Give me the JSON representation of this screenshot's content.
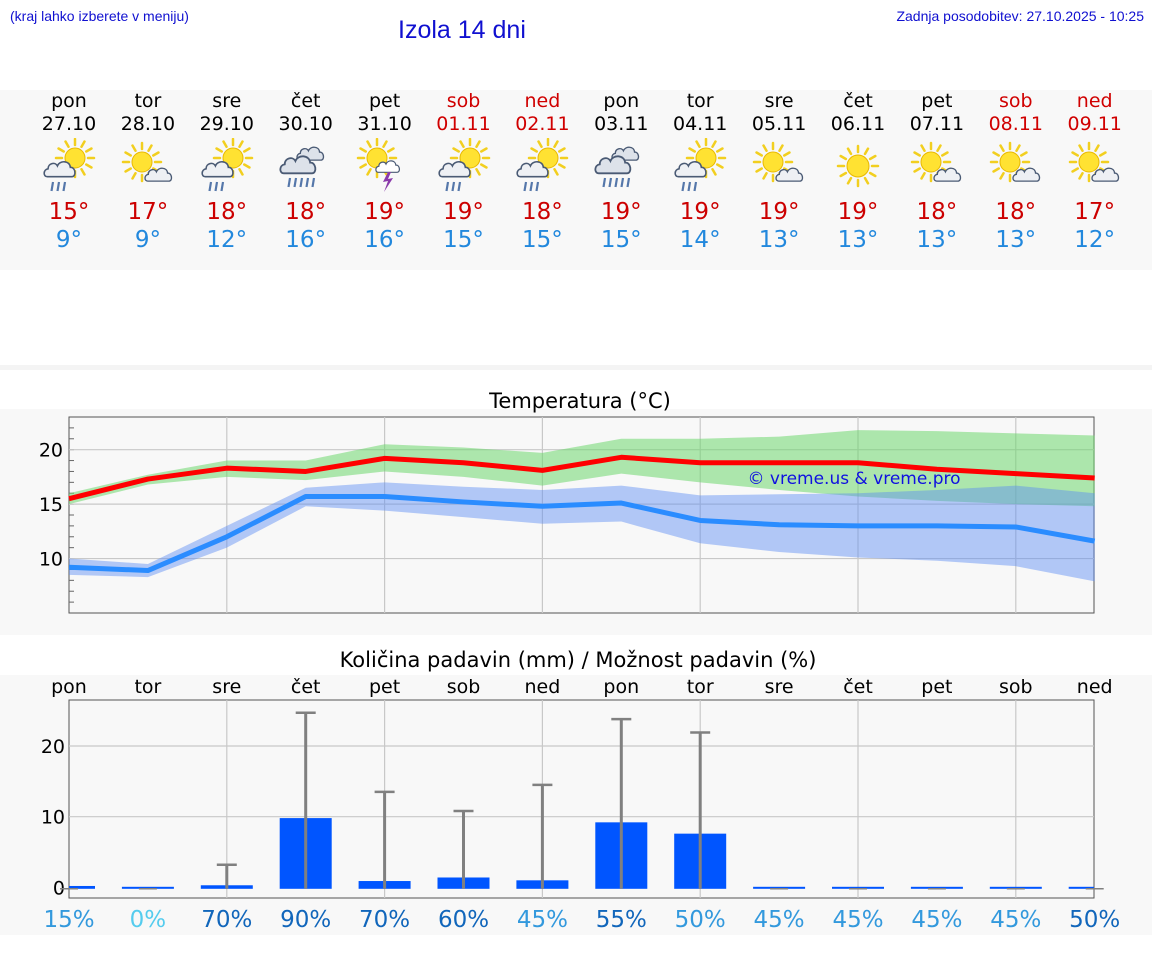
{
  "header": {
    "menu_hint": "(kraj lahko izberete v meniju)",
    "title": "Izola 14 dni",
    "last_update": "Zadnja posodobitev: 27.10.2025 - 10:25"
  },
  "days": [
    {
      "name": "pon",
      "date": "27.10",
      "icon": "sun-cloud-rain-icon",
      "tmax": "15°",
      "tmin": "9°",
      "weekend": false
    },
    {
      "name": "tor",
      "date": "28.10",
      "icon": "sun-cloud-icon",
      "tmax": "17°",
      "tmin": "9°",
      "weekend": false
    },
    {
      "name": "sre",
      "date": "29.10",
      "icon": "sun-cloud-rain-icon",
      "tmax": "18°",
      "tmin": "12°",
      "weekend": false
    },
    {
      "name": "čet",
      "date": "30.10",
      "icon": "cloud-rain-icon",
      "tmax": "18°",
      "tmin": "16°",
      "weekend": false
    },
    {
      "name": "pet",
      "date": "31.10",
      "icon": "sun-thunder-icon",
      "tmax": "19°",
      "tmin": "16°",
      "weekend": false
    },
    {
      "name": "sob",
      "date": "01.11",
      "icon": "sun-cloud-rain-icon",
      "tmax": "19°",
      "tmin": "15°",
      "weekend": true
    },
    {
      "name": "ned",
      "date": "02.11",
      "icon": "sun-cloud-rain-icon",
      "tmax": "18°",
      "tmin": "15°",
      "weekend": true
    },
    {
      "name": "pon",
      "date": "03.11",
      "icon": "cloud-rain-icon",
      "tmax": "19°",
      "tmin": "15°",
      "weekend": false
    },
    {
      "name": "tor",
      "date": "04.11",
      "icon": "sun-cloud-rain-icon",
      "tmax": "19°",
      "tmin": "14°",
      "weekend": false
    },
    {
      "name": "sre",
      "date": "05.11",
      "icon": "sun-cloud-icon",
      "tmax": "19°",
      "tmin": "13°",
      "weekend": false
    },
    {
      "name": "čet",
      "date": "06.11",
      "icon": "sun-icon",
      "tmax": "19°",
      "tmin": "13°",
      "weekend": false
    },
    {
      "name": "pet",
      "date": "07.11",
      "icon": "sun-cloud-icon",
      "tmax": "18°",
      "tmin": "13°",
      "weekend": false
    },
    {
      "name": "sob",
      "date": "08.11",
      "icon": "sun-cloud-icon",
      "tmax": "18°",
      "tmin": "13°",
      "weekend": true
    },
    {
      "name": "ned",
      "date": "09.11",
      "icon": "sun-cloud-icon",
      "tmax": "17°",
      "tmin": "12°",
      "weekend": true
    }
  ],
  "chart_data": [
    {
      "type": "line",
      "title": "Temperatura (°C)",
      "watermark": "© vreme.us & vreme.pro",
      "ylim": [
        5,
        23
      ],
      "yticks": [
        10,
        15,
        20
      ],
      "x": [
        0,
        1,
        2,
        3,
        4,
        5,
        6,
        7,
        8,
        9,
        10,
        11,
        12,
        13
      ],
      "series": [
        {
          "name": "max",
          "color": "#ff0000",
          "values": [
            15.5,
            17.3,
            18.3,
            18.0,
            19.2,
            18.8,
            18.1,
            19.3,
            18.8,
            18.8,
            18.8,
            18.2,
            17.8,
            17.4
          ],
          "band_low": [
            15.0,
            16.8,
            17.5,
            17.2,
            18.0,
            17.5,
            16.7,
            17.8,
            17.0,
            16.3,
            15.7,
            15.3,
            15.0,
            14.8
          ],
          "band_high": [
            16.0,
            17.7,
            19.0,
            19.0,
            20.5,
            20.2,
            19.7,
            21.0,
            21.0,
            21.2,
            21.8,
            21.7,
            21.5,
            21.3
          ]
        },
        {
          "name": "min",
          "color": "#2a8cff",
          "values": [
            9.2,
            8.9,
            12.0,
            15.7,
            15.7,
            15.2,
            14.8,
            15.1,
            13.5,
            13.1,
            13.0,
            13.0,
            12.9,
            11.6
          ],
          "band_low": [
            8.5,
            8.3,
            11.0,
            14.8,
            14.4,
            13.8,
            13.2,
            13.4,
            11.4,
            10.6,
            10.1,
            9.8,
            9.3,
            7.9
          ],
          "band_high": [
            10.0,
            9.5,
            13.0,
            16.5,
            17.0,
            16.6,
            16.3,
            16.7,
            15.8,
            15.9,
            16.0,
            16.3,
            16.7,
            16.0
          ]
        }
      ]
    },
    {
      "type": "bar",
      "title": "Količina padavin (mm) / Možnost padavin (%)",
      "ylim": [
        -1.5,
        26.5
      ],
      "yticks": [
        0,
        10,
        20
      ],
      "categories": [
        "pon",
        "tor",
        "sre",
        "čet",
        "pet",
        "sob",
        "ned",
        "pon",
        "tor",
        "sre",
        "čet",
        "pet",
        "sob",
        "ned"
      ],
      "values": [
        0.2,
        0,
        0.3,
        9.8,
        0.9,
        1.4,
        1.0,
        9.2,
        7.6,
        0,
        0,
        0,
        0,
        0
      ],
      "max_values": [
        0,
        0,
        3.2,
        24.7,
        13.5,
        10.8,
        14.5,
        23.8,
        21.9,
        0,
        0,
        0,
        0,
        0
      ],
      "probabilities": [
        "15%",
        "0%",
        "70%",
        "90%",
        "70%",
        "60%",
        "45%",
        "55%",
        "50%",
        "45%",
        "45%",
        "45%",
        "45%",
        "50%"
      ],
      "prob_colors": [
        "#3399dd",
        "#55ccee",
        "#1166bb",
        "#1166bb",
        "#1166bb",
        "#1166bb",
        "#3399dd",
        "#1166bb",
        "#3399dd",
        "#3399dd",
        "#3399dd",
        "#3399dd",
        "#3399dd",
        "#1166bb"
      ],
      "bar_color": "#0055ff",
      "whisker_color": "#808080"
    }
  ]
}
